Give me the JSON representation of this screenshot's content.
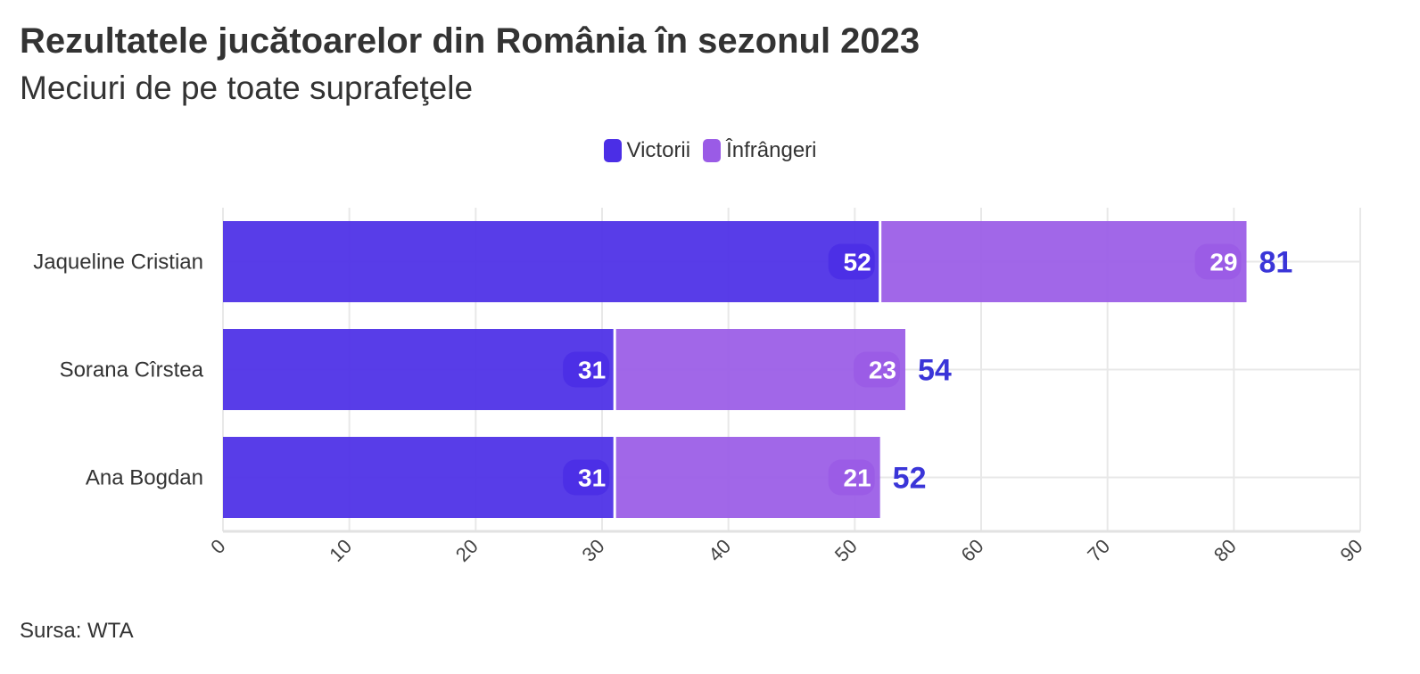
{
  "title": "Rezultatele jucătoarelor din România în sezonul 2023",
  "subtitle": "Meciuri de pe toate suprafeţele",
  "source": "Sursa: WTA",
  "colors": {
    "wins": "#4b2ee6",
    "losses": "#9a5be6",
    "total": "#3a35d8",
    "grid": "#e8e8e8"
  },
  "chart_data": {
    "type": "bar",
    "orientation": "horizontal",
    "stacked": true,
    "categories": [
      "Jaqueline Cristian",
      "Sorana Cîrstea",
      "Ana Bogdan"
    ],
    "series": [
      {
        "name": "Victorii",
        "values": [
          52,
          31,
          31
        ]
      },
      {
        "name": "Înfrângeri",
        "values": [
          29,
          23,
          21
        ]
      }
    ],
    "totals": [
      81,
      54,
      52
    ],
    "xlim": [
      0,
      90
    ],
    "xticks": [
      "0",
      "10",
      "20",
      "30",
      "40",
      "50",
      "60",
      "70",
      "80",
      "90"
    ],
    "grid": true,
    "legend_position": "top-center"
  }
}
